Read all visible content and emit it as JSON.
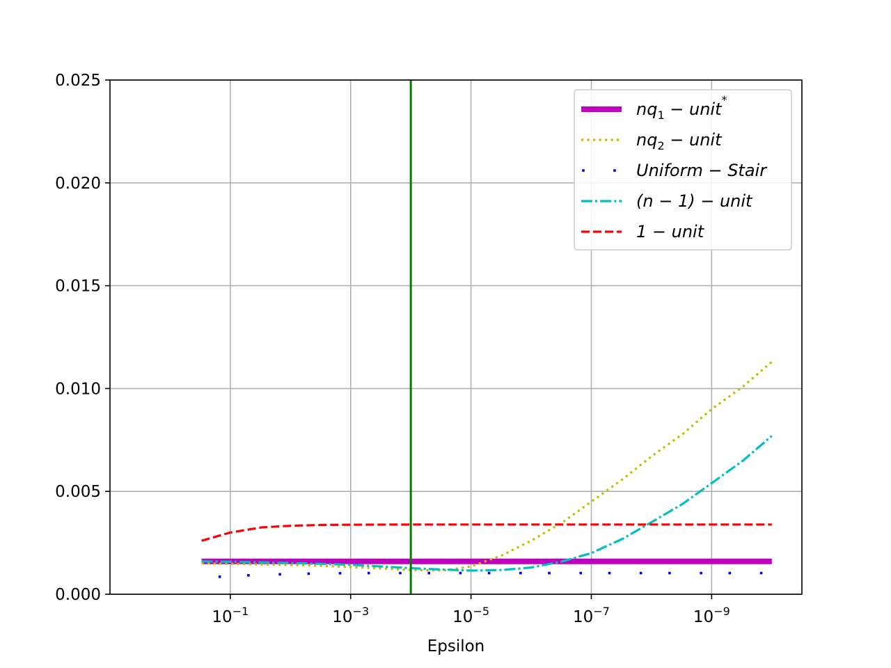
{
  "chart_data": {
    "type": "line",
    "title": "",
    "xlabel": "Epsilon",
    "ylabel": "",
    "x_scale": "log",
    "x_direction": "decreasing",
    "x_range": [
      0.3,
      1e-10
    ],
    "ylim": [
      0,
      0.025
    ],
    "grid": true,
    "legend_position": "top-right",
    "x_ticks": [
      {
        "value": 0.1,
        "label_base": "10",
        "label_exp": "−1"
      },
      {
        "value": 0.001,
        "label_base": "10",
        "label_exp": "−3"
      },
      {
        "value": 1e-05,
        "label_base": "10",
        "label_exp": "−5"
      },
      {
        "value": 1e-07,
        "label_base": "10",
        "label_exp": "−7"
      },
      {
        "value": 1e-09,
        "label_base": "10",
        "label_exp": "−9"
      }
    ],
    "y_ticks": [
      {
        "value": 0.0,
        "label": "0.000"
      },
      {
        "value": 0.005,
        "label": "0.005"
      },
      {
        "value": 0.01,
        "label": "0.010"
      },
      {
        "value": 0.015,
        "label": "0.015"
      },
      {
        "value": 0.02,
        "label": "0.020"
      },
      {
        "value": 0.025,
        "label": "0.025"
      }
    ],
    "vertical_line": {
      "x": 0.0001,
      "color": "#008000"
    },
    "series": [
      {
        "name": "nq_1 - unit^*",
        "color": "#bf00bf",
        "style": "solid-thick",
        "x": [
          0.3,
          1e-10
        ],
        "y": [
          0.0016,
          0.0016
        ]
      },
      {
        "name": "nq_2 - unit",
        "color": "#bfbf00",
        "style": "dotted",
        "x": [
          0.3,
          0.1,
          0.03,
          0.01,
          0.003,
          0.001,
          0.0003,
          0.0001,
          3e-05,
          1e-05,
          3e-06,
          1e-06,
          3e-07,
          1e-07,
          3e-08,
          1e-08,
          3e-09,
          1e-09,
          3e-10,
          1e-10
        ],
        "y": [
          0.0015,
          0.00148,
          0.00145,
          0.00142,
          0.00138,
          0.00132,
          0.00125,
          0.00118,
          0.00115,
          0.00135,
          0.0019,
          0.0026,
          0.0035,
          0.0045,
          0.0056,
          0.0067,
          0.0078,
          0.009,
          0.0101,
          0.0113
        ]
      },
      {
        "name": "Uniform - Stair",
        "color": "#0000ff",
        "style": "sparse-dots",
        "x": [
          0.15,
          0.05,
          0.015,
          0.005,
          0.0015,
          0.0005,
          0.00015,
          5e-05,
          1.5e-05,
          5e-06,
          1.5e-06,
          5e-07,
          1.5e-07,
          5e-08,
          1.5e-08,
          5e-09,
          1.5e-09,
          5e-10,
          1.5e-10
        ],
        "y": [
          0.00085,
          0.00092,
          0.00097,
          0.001,
          0.00102,
          0.00103,
          0.00103,
          0.00103,
          0.00103,
          0.00103,
          0.00103,
          0.00103,
          0.00103,
          0.00103,
          0.00103,
          0.00103,
          0.00103,
          0.00103,
          0.00103
        ]
      },
      {
        "name": "(n - 1) - unit",
        "color": "#00bfbf",
        "style": "dashdot",
        "x": [
          0.3,
          0.1,
          0.03,
          0.01,
          0.003,
          0.001,
          0.0003,
          0.0001,
          3e-05,
          1e-05,
          3e-06,
          1e-06,
          3e-07,
          1e-07,
          3e-08,
          1e-08,
          3e-09,
          1e-09,
          3e-10,
          1e-10
        ],
        "y": [
          0.0016,
          0.00158,
          0.00155,
          0.00152,
          0.00148,
          0.00143,
          0.00135,
          0.00127,
          0.0012,
          0.00115,
          0.00118,
          0.0013,
          0.0016,
          0.002,
          0.0027,
          0.0035,
          0.0044,
          0.0054,
          0.0065,
          0.0077
        ]
      },
      {
        "name": "1 - unit",
        "color": "#ff0000",
        "style": "dashed",
        "x": [
          0.3,
          0.1,
          0.03,
          0.01,
          0.003,
          0.001,
          0.0001,
          1e-05,
          1e-06,
          1e-07,
          1e-08,
          1e-09,
          1e-10
        ],
        "y": [
          0.0026,
          0.003,
          0.00325,
          0.00333,
          0.00337,
          0.00338,
          0.00339,
          0.00339,
          0.00339,
          0.00339,
          0.00339,
          0.00339,
          0.00339
        ]
      }
    ]
  }
}
